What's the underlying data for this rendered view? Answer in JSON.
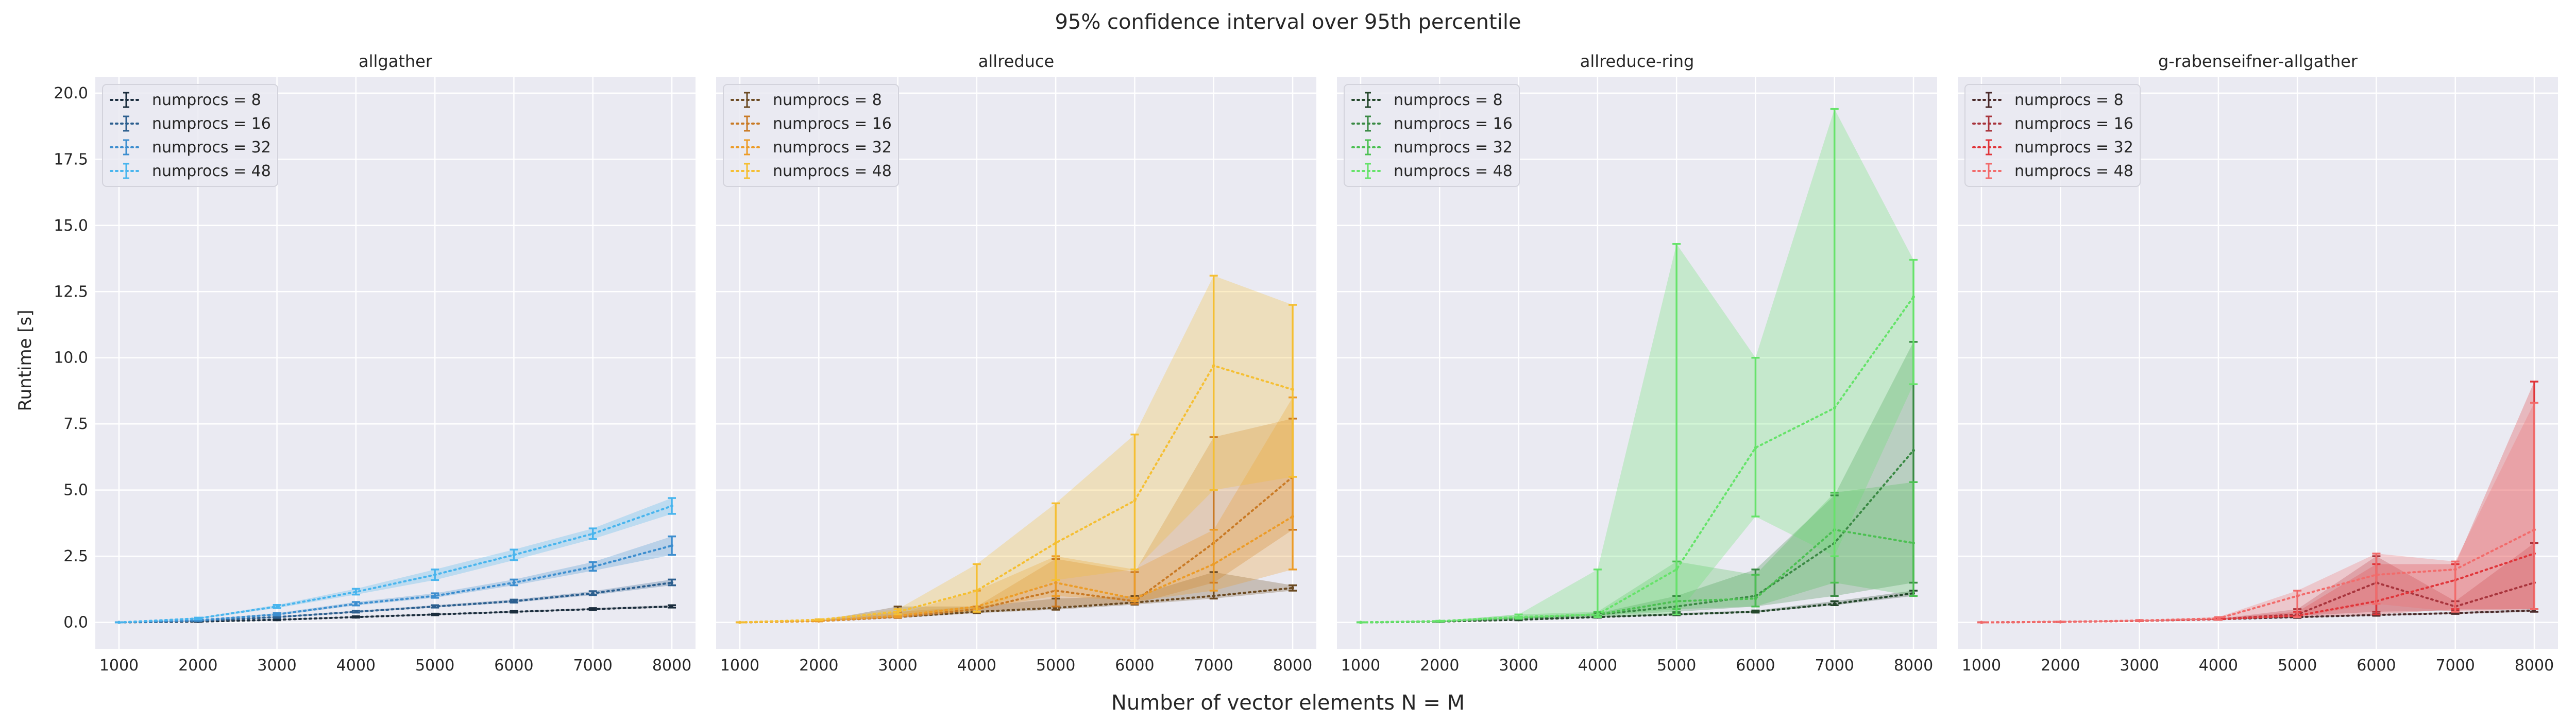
{
  "figure": {
    "suptitle": "95% confidence interval over 95th percentile",
    "xlabel": "Number of vector elements N = M",
    "ylabel": "Runtime [s]"
  },
  "chart_data": [
    {
      "type": "line",
      "title": "allgather",
      "x": [
        1000,
        2000,
        3000,
        4000,
        5000,
        6000,
        7000,
        8000
      ],
      "xticks": [
        1000,
        2000,
        3000,
        4000,
        5000,
        6000,
        7000,
        8000
      ],
      "xlim": [
        700,
        8300
      ],
      "ylim": [
        -1.0,
        20.6
      ],
      "yticks": [
        0.0,
        2.5,
        5.0,
        7.5,
        10.0,
        12.5,
        15.0,
        17.5,
        20.0
      ],
      "ytick_labels": [
        "0.0",
        "2.5",
        "5.0",
        "7.5",
        "10.0",
        "12.5",
        "15.0",
        "17.5",
        "20.0"
      ],
      "grid": true,
      "legend": "top-left",
      "series": [
        {
          "name": "numprocs = 8",
          "color": "#1b2d3d",
          "values": [
            0.0,
            0.03,
            0.1,
            0.2,
            0.3,
            0.4,
            0.5,
            0.6
          ],
          "lower": [
            0.0,
            0.02,
            0.08,
            0.18,
            0.27,
            0.37,
            0.47,
            0.56
          ],
          "upper": [
            0.0,
            0.04,
            0.12,
            0.23,
            0.33,
            0.43,
            0.54,
            0.65
          ]
        },
        {
          "name": "numprocs = 16",
          "color": "#2c5f8f",
          "values": [
            0.0,
            0.05,
            0.2,
            0.4,
            0.6,
            0.8,
            1.1,
            1.5
          ],
          "lower": [
            0.0,
            0.04,
            0.17,
            0.37,
            0.56,
            0.75,
            1.03,
            1.4
          ],
          "upper": [
            0.0,
            0.07,
            0.23,
            0.44,
            0.65,
            0.86,
            1.18,
            1.62
          ]
        },
        {
          "name": "numprocs = 32",
          "color": "#3d8ecf",
          "values": [
            0.0,
            0.08,
            0.3,
            0.7,
            1.0,
            1.5,
            2.1,
            2.9
          ],
          "lower": [
            0.0,
            0.06,
            0.26,
            0.64,
            0.93,
            1.4,
            1.95,
            2.55
          ],
          "upper": [
            0.0,
            0.1,
            0.35,
            0.77,
            1.1,
            1.62,
            2.28,
            3.25
          ]
        },
        {
          "name": "numprocs = 48",
          "color": "#49b5ee",
          "values": [
            0.0,
            0.15,
            0.6,
            1.15,
            1.8,
            2.55,
            3.35,
            4.4
          ],
          "lower": [
            0.0,
            0.12,
            0.54,
            1.05,
            1.6,
            2.35,
            3.15,
            4.1
          ],
          "upper": [
            0.0,
            0.18,
            0.66,
            1.27,
            2.0,
            2.75,
            3.55,
            4.7
          ]
        }
      ]
    },
    {
      "type": "line",
      "title": "allreduce",
      "x": [
        1000,
        2000,
        3000,
        4000,
        5000,
        6000,
        7000,
        8000
      ],
      "xticks": [
        1000,
        2000,
        3000,
        4000,
        5000,
        6000,
        7000,
        8000
      ],
      "xlim": [
        700,
        8300
      ],
      "ylim": [
        -1.0,
        20.6
      ],
      "yticks": [
        0.0,
        2.5,
        5.0,
        7.5,
        10.0,
        12.5,
        15.0,
        17.5,
        20.0
      ],
      "grid": true,
      "legend": "top-left",
      "series": [
        {
          "name": "numprocs = 8",
          "color": "#6b4a22",
          "values": [
            0.0,
            0.05,
            0.2,
            0.4,
            0.55,
            0.75,
            1.0,
            1.3
          ],
          "lower": [
            0.0,
            0.04,
            0.17,
            0.35,
            0.48,
            0.67,
            0.9,
            1.2
          ],
          "upper": [
            0.0,
            0.06,
            0.6,
            0.6,
            0.9,
            1.0,
            1.9,
            1.4
          ]
        },
        {
          "name": "numprocs = 16",
          "color": "#c97a25",
          "values": [
            0.0,
            0.05,
            0.2,
            0.5,
            1.2,
            0.8,
            3.0,
            5.5
          ],
          "lower": [
            0.0,
            0.04,
            0.17,
            0.4,
            0.6,
            0.7,
            1.5,
            3.5
          ],
          "upper": [
            0.0,
            0.06,
            0.4,
            0.6,
            2.4,
            1.9,
            7.0,
            7.7
          ]
        },
        {
          "name": "numprocs = 32",
          "color": "#ec9c28",
          "values": [
            0.0,
            0.05,
            0.25,
            0.6,
            1.5,
            0.9,
            2.2,
            4.0
          ],
          "lower": [
            0.0,
            0.04,
            0.2,
            0.5,
            1.0,
            0.8,
            1.2,
            2.0
          ],
          "upper": [
            0.0,
            0.06,
            0.3,
            1.2,
            2.5,
            2.0,
            3.5,
            8.5
          ]
        },
        {
          "name": "numprocs = 48",
          "color": "#f5bf33",
          "values": [
            0.0,
            0.1,
            0.4,
            1.2,
            3.0,
            4.6,
            9.7,
            8.8
          ],
          "lower": [
            0.0,
            0.08,
            0.3,
            0.4,
            1.6,
            2.0,
            5.0,
            5.5
          ],
          "upper": [
            0.0,
            0.12,
            0.5,
            2.2,
            4.5,
            7.1,
            13.1,
            12.0
          ]
        }
      ]
    },
    {
      "type": "line",
      "title": "allreduce-ring",
      "x": [
        1000,
        2000,
        3000,
        4000,
        5000,
        6000,
        7000,
        8000
      ],
      "xticks": [
        1000,
        2000,
        3000,
        4000,
        5000,
        6000,
        7000,
        8000
      ],
      "xlim": [
        700,
        8300
      ],
      "ylim": [
        -1.0,
        20.6
      ],
      "yticks": [
        0.0,
        2.5,
        5.0,
        7.5,
        10.0,
        12.5,
        15.0,
        17.5,
        20.0
      ],
      "grid": true,
      "legend": "top-left",
      "series": [
        {
          "name": "numprocs = 8",
          "color": "#23462a",
          "values": [
            0.0,
            0.03,
            0.1,
            0.2,
            0.3,
            0.4,
            0.7,
            1.1
          ],
          "lower": [
            0.0,
            0.02,
            0.08,
            0.18,
            0.27,
            0.37,
            0.65,
            1.0
          ],
          "upper": [
            0.0,
            0.04,
            0.12,
            0.25,
            0.35,
            0.45,
            0.8,
            1.2
          ]
        },
        {
          "name": "numprocs = 16",
          "color": "#3a8a44",
          "values": [
            0.0,
            0.03,
            0.15,
            0.3,
            0.6,
            1.0,
            3.0,
            6.5
          ],
          "lower": [
            0.0,
            0.02,
            0.12,
            0.25,
            0.4,
            0.6,
            1.0,
            1.5
          ],
          "upper": [
            0.0,
            0.04,
            0.2,
            0.35,
            1.0,
            2.0,
            4.8,
            10.6
          ]
        },
        {
          "name": "numprocs = 32",
          "color": "#4cc052",
          "values": [
            0.0,
            0.04,
            0.2,
            0.3,
            0.8,
            0.9,
            3.5,
            3.0
          ],
          "lower": [
            0.0,
            0.03,
            0.15,
            0.25,
            0.5,
            0.6,
            1.5,
            1.0
          ],
          "upper": [
            0.0,
            0.05,
            0.3,
            0.4,
            2.3,
            1.8,
            4.9,
            5.3
          ]
        },
        {
          "name": "numprocs = 48",
          "color": "#66e36a",
          "values": [
            0.0,
            0.05,
            0.2,
            0.3,
            2.0,
            6.6,
            8.1,
            12.3
          ],
          "lower": [
            0.0,
            0.04,
            0.15,
            0.2,
            0.3,
            4.0,
            2.5,
            9.0
          ],
          "upper": [
            0.0,
            0.06,
            0.3,
            2.0,
            14.3,
            10.0,
            19.4,
            13.7
          ]
        }
      ]
    },
    {
      "type": "line",
      "title": "g-rabenseifner-allgather",
      "x": [
        1000,
        2000,
        3000,
        4000,
        5000,
        6000,
        7000,
        8000
      ],
      "xticks": [
        1000,
        2000,
        3000,
        4000,
        5000,
        6000,
        7000,
        8000
      ],
      "xlim": [
        700,
        8300
      ],
      "ylim": [
        -1.0,
        20.6
      ],
      "yticks": [
        0.0,
        2.5,
        5.0,
        7.5,
        10.0,
        12.5,
        15.0,
        17.5,
        20.0
      ],
      "grid": true,
      "legend": "top-left",
      "series": [
        {
          "name": "numprocs = 8",
          "color": "#4a2a2a",
          "values": [
            0.0,
            0.02,
            0.06,
            0.12,
            0.2,
            0.28,
            0.35,
            0.45
          ],
          "lower": [
            0.0,
            0.015,
            0.05,
            0.1,
            0.17,
            0.25,
            0.32,
            0.4
          ],
          "upper": [
            0.0,
            0.025,
            0.07,
            0.14,
            0.23,
            0.31,
            0.39,
            0.5
          ]
        },
        {
          "name": "numprocs = 16",
          "color": "#a8343c",
          "values": [
            0.0,
            0.02,
            0.06,
            0.12,
            0.3,
            1.5,
            0.6,
            1.5
          ],
          "lower": [
            0.0,
            0.015,
            0.05,
            0.1,
            0.25,
            0.4,
            0.45,
            0.5
          ],
          "upper": [
            0.0,
            0.025,
            0.07,
            0.14,
            0.5,
            2.5,
            0.8,
            3.0
          ]
        },
        {
          "name": "numprocs = 32",
          "color": "#e0353a",
          "values": [
            0.0,
            0.02,
            0.06,
            0.12,
            0.25,
            0.8,
            1.6,
            2.6
          ],
          "lower": [
            0.0,
            0.015,
            0.05,
            0.1,
            0.2,
            0.3,
            0.5,
            0.5
          ],
          "upper": [
            0.0,
            0.025,
            0.07,
            0.15,
            0.4,
            2.2,
            2.2,
            9.1
          ]
        },
        {
          "name": "numprocs = 48",
          "color": "#f26b6b",
          "values": [
            0.0,
            0.02,
            0.07,
            0.15,
            1.0,
            1.8,
            2.0,
            3.5
          ],
          "lower": [
            0.0,
            0.015,
            0.05,
            0.1,
            0.2,
            0.7,
            0.4,
            0.5
          ],
          "upper": [
            0.0,
            0.03,
            0.09,
            0.2,
            1.2,
            2.6,
            2.3,
            8.3
          ]
        }
      ]
    }
  ]
}
